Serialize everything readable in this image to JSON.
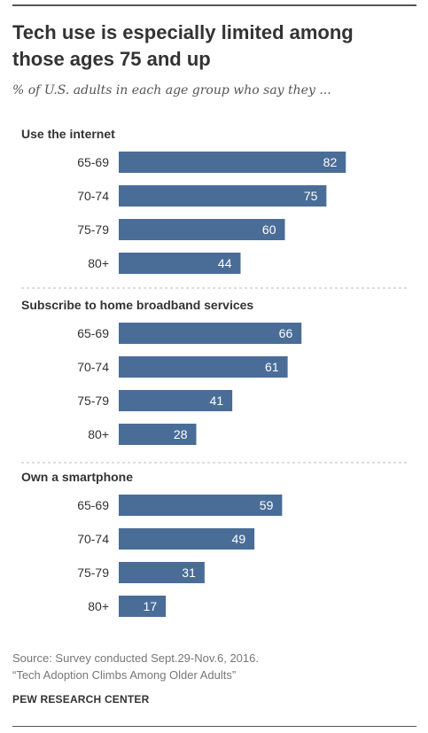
{
  "title": "Tech use is especially limited among those ages 75 and up",
  "subtitle": "% of U.S. adults in each age group who say they ...",
  "source_line1": "Source: Survey conducted Sept.29-Nov.6, 2016.",
  "source_line2": "“Tech Adoption Climbs Among Older Adults”",
  "brand": "PEW RESEARCH CENTER",
  "colors": {
    "bar": "#4a6d98",
    "bar_label": "#ffffff",
    "text": "#333333",
    "divider": "#bbbbbb"
  },
  "chart_data": [
    {
      "type": "bar",
      "title": "Use the internet",
      "categories": [
        "65-69",
        "70-74",
        "75-79",
        "80+"
      ],
      "values": [
        82,
        75,
        60,
        44
      ]
    },
    {
      "type": "bar",
      "title": "Subscribe to home broadband services",
      "categories": [
        "65-69",
        "70-74",
        "75-79",
        "80+"
      ],
      "values": [
        66,
        61,
        41,
        28
      ]
    },
    {
      "type": "bar",
      "title": "Own a smartphone",
      "categories": [
        "65-69",
        "70-74",
        "75-79",
        "80+"
      ],
      "values": [
        59,
        49,
        31,
        17
      ]
    }
  ]
}
